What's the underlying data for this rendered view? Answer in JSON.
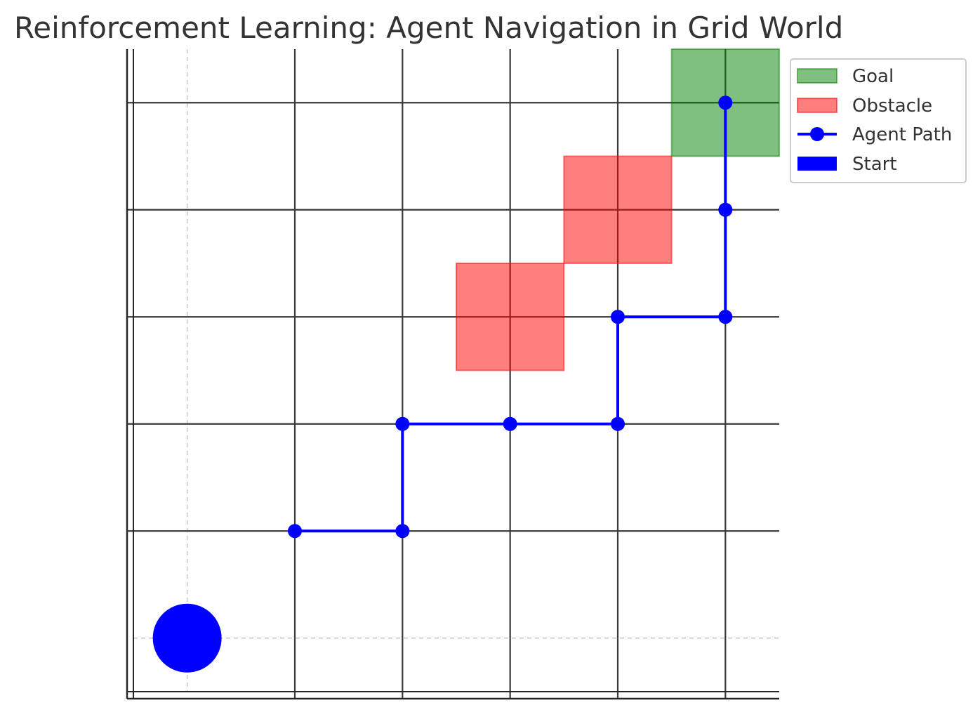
{
  "chart_data": {
    "type": "scatter",
    "title": "Reinforcement Learning: Agent Navigation in Grid World",
    "xlabel": "",
    "ylabel": "",
    "xlim": [
      -0.5,
      5.5
    ],
    "ylim": [
      -0.5,
      5.5
    ],
    "grid": {
      "major": true,
      "minor": true
    },
    "goal": {
      "name": "Goal",
      "x": [
        4.5,
        5.5
      ],
      "y": [
        4.5,
        5.5
      ],
      "color": "#008000"
    },
    "obstacles": {
      "name": "Obstacle",
      "color": "#ff0000",
      "cells": [
        {
          "x": [
            2.5,
            3.5
          ],
          "y": [
            2.5,
            3.5
          ]
        },
        {
          "x": [
            3.5,
            4.5
          ],
          "y": [
            3.5,
            4.5
          ]
        }
      ]
    },
    "agent_path": {
      "name": "Agent Path",
      "color": "#0000ff",
      "points": [
        {
          "x": 1,
          "y": 1
        },
        {
          "x": 2,
          "y": 1
        },
        {
          "x": 2,
          "y": 2
        },
        {
          "x": 3,
          "y": 2
        },
        {
          "x": 4,
          "y": 2
        },
        {
          "x": 4,
          "y": 3
        },
        {
          "x": 5,
          "y": 3
        },
        {
          "x": 5,
          "y": 4
        },
        {
          "x": 5,
          "y": 5
        }
      ]
    },
    "start": {
      "name": "Start",
      "x": 0,
      "y": 0,
      "color": "#0000ff"
    },
    "legend": {
      "placement": "outside-top-right",
      "entries": [
        "Goal",
        "Obstacle",
        "Agent Path",
        "Start"
      ]
    }
  }
}
